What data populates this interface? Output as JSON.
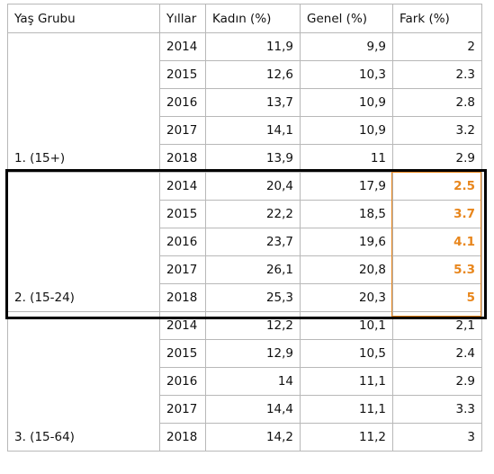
{
  "headers": [
    "Yaş Grubu",
    "Yıllar",
    "Kadın (%)",
    "Genel (%)",
    "Fark (%)"
  ],
  "groups": [
    {
      "label": "1. (15+)",
      "rows": [
        {
          "year": "2014",
          "kadin": "11,9",
          "genel": "9,9",
          "fark": "2"
        },
        {
          "year": "2015",
          "kadin": "12,6",
          "genel": "10,3",
          "fark": "2.3"
        },
        {
          "year": "2016",
          "kadin": "13,7",
          "genel": "10,9",
          "fark": "2.8"
        },
        {
          "year": "2017",
          "kadin": "14,1",
          "genel": "10,9",
          "fark": "3.2"
        },
        {
          "year": "2018",
          "kadin": "13,9",
          "genel": "11",
          "fark": "2.9"
        }
      ]
    },
    {
      "label": "2. (15-24)",
      "highlighted": true,
      "rows": [
        {
          "year": "2014",
          "kadin": "20,4",
          "genel": "17,9",
          "fark": "2.5"
        },
        {
          "year": "2015",
          "kadin": "22,2",
          "genel": "18,5",
          "fark": "3.7"
        },
        {
          "year": "2016",
          "kadin": "23,7",
          "genel": "19,6",
          "fark": "4.1"
        },
        {
          "year": "2017",
          "kadin": "26,1",
          "genel": "20,8",
          "fark": "5.3"
        },
        {
          "year": "2018",
          "kadin": "25,3",
          "genel": "20,3",
          "fark": "5"
        }
      ]
    },
    {
      "label": "3. (15-64)",
      "rows": [
        {
          "year": "2014",
          "kadin": "12,2",
          "genel": "10,1",
          "fark": "2,1"
        },
        {
          "year": "2015",
          "kadin": "12,9",
          "genel": "10,5",
          "fark": "2.4"
        },
        {
          "year": "2016",
          "kadin": "14",
          "genel": "11,1",
          "fark": "2.9"
        },
        {
          "year": "2017",
          "kadin": "14,4",
          "genel": "11,1",
          "fark": "3.3"
        },
        {
          "year": "2018",
          "kadin": "14,2",
          "genel": "11,2",
          "fark": "3"
        }
      ]
    }
  ],
  "colors": {
    "highlight": "#e8861c",
    "outline": "#000000",
    "grid": "#b8b8b8"
  }
}
